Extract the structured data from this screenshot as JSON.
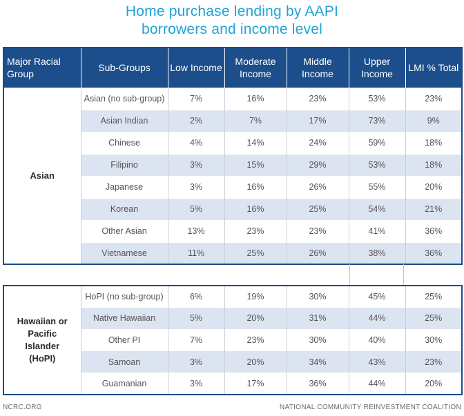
{
  "title": {
    "line1": "Home purchase lending by AAPI",
    "line2": "borrowers and income level"
  },
  "headers": {
    "group": "Major Racial Group",
    "sub": "Sub-Groups",
    "low": "Low Income",
    "moderate": "Moderate Income",
    "middle": "Middle Income",
    "upper": "Upper Income",
    "lmi": "LMI % Total"
  },
  "sections": [
    {
      "group": "Asian",
      "rows": [
        {
          "sub": "Asian (no sub-group)",
          "low": "7%",
          "moderate": "16%",
          "middle": "23%",
          "upper": "53%",
          "lmi": "23%"
        },
        {
          "sub": "Asian Indian",
          "low": "2%",
          "moderate": "7%",
          "middle": "17%",
          "upper": "73%",
          "lmi": "9%"
        },
        {
          "sub": "Chinese",
          "low": "4%",
          "moderate": "14%",
          "middle": "24%",
          "upper": "59%",
          "lmi": "18%"
        },
        {
          "sub": "Filipino",
          "low": "3%",
          "moderate": "15%",
          "middle": "29%",
          "upper": "53%",
          "lmi": "18%"
        },
        {
          "sub": "Japanese",
          "low": "3%",
          "moderate": "16%",
          "middle": "26%",
          "upper": "55%",
          "lmi": "20%"
        },
        {
          "sub": "Korean",
          "low": "5%",
          "moderate": "16%",
          "middle": "25%",
          "upper": "54%",
          "lmi": "21%"
        },
        {
          "sub": "Other Asian",
          "low": "13%",
          "moderate": "23%",
          "middle": "23%",
          "upper": "41%",
          "lmi": "36%"
        },
        {
          "sub": "Vietnamese",
          "low": "11%",
          "moderate": "25%",
          "middle": "26%",
          "upper": "38%",
          "lmi": "36%"
        }
      ]
    },
    {
      "group": "Hawaiian or Pacific Islander (HoPI)",
      "rows": [
        {
          "sub": "HoPI (no sub-group)",
          "low": "6%",
          "moderate": "19%",
          "middle": "30%",
          "upper": "45%",
          "lmi": "25%"
        },
        {
          "sub": "Native Hawaiian",
          "low": "5%",
          "moderate": "20%",
          "middle": "31%",
          "upper": "44%",
          "lmi": "25%"
        },
        {
          "sub": "Other PI",
          "low": "7%",
          "moderate": "23%",
          "middle": "30%",
          "upper": "40%",
          "lmi": "30%"
        },
        {
          "sub": "Samoan",
          "low": "3%",
          "moderate": "20%",
          "middle": "34%",
          "upper": "43%",
          "lmi": "23%"
        },
        {
          "sub": "Guamanian",
          "low": "3%",
          "moderate": "17%",
          "middle": "36%",
          "upper": "44%",
          "lmi": "20%"
        }
      ]
    }
  ],
  "footer": {
    "left": "NCRC.ORG",
    "right": "NATIONAL COMMUNITY REINVESTMENT COALITION"
  }
}
